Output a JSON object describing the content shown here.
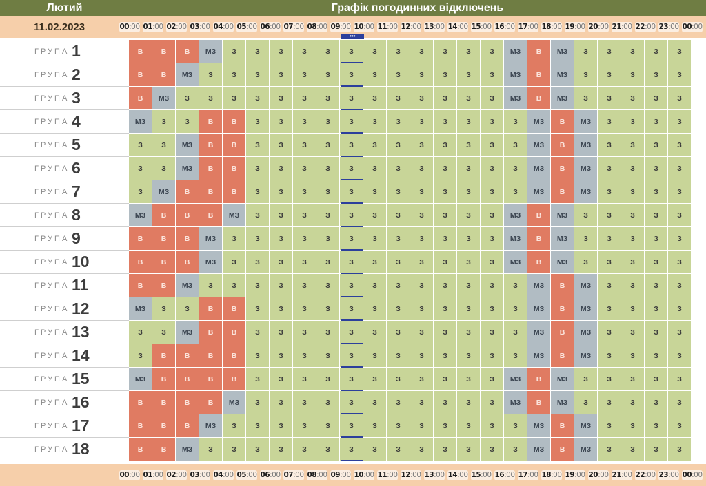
{
  "header": {
    "month": "Лютий",
    "title": "Графік погодинних відключень",
    "date": "11.02.2023"
  },
  "now_badge": "•••",
  "hours": [
    "00",
    "01",
    "02",
    "03",
    "04",
    "05",
    "06",
    "07",
    "08",
    "09",
    "10",
    "11",
    "12",
    "13",
    "14",
    "15",
    "16",
    "17",
    "18",
    "19",
    "20",
    "21",
    "22",
    "23",
    "00"
  ],
  "minutes": ":00",
  "group_word": "ГРУПА",
  "status_labels": {
    "z": "З",
    "v": "В",
    "mz": "МЗ"
  },
  "colors": {
    "z": "#c8d598",
    "v": "#e07b62",
    "mz": "#b1bcc3",
    "header": "#6f7d43",
    "time_bar": "#f6cfaa",
    "now": "#2c3f9c"
  },
  "groups": [
    {
      "number": "1",
      "slots": [
        "v",
        "v",
        "v",
        "mz",
        "z",
        "z",
        "z",
        "z",
        "z",
        "z",
        "z",
        "z",
        "z",
        "z",
        "z",
        "z",
        "mz",
        "v",
        "mz",
        "z",
        "z",
        "z",
        "z",
        "z"
      ]
    },
    {
      "number": "2",
      "slots": [
        "v",
        "v",
        "mz",
        "z",
        "z",
        "z",
        "z",
        "z",
        "z",
        "z",
        "z",
        "z",
        "z",
        "z",
        "z",
        "z",
        "mz",
        "v",
        "mz",
        "z",
        "z",
        "z",
        "z",
        "z"
      ]
    },
    {
      "number": "3",
      "slots": [
        "v",
        "mz",
        "z",
        "z",
        "z",
        "z",
        "z",
        "z",
        "z",
        "z",
        "z",
        "z",
        "z",
        "z",
        "z",
        "z",
        "mz",
        "v",
        "mz",
        "z",
        "z",
        "z",
        "z",
        "z"
      ]
    },
    {
      "number": "4",
      "slots": [
        "mz",
        "z",
        "z",
        "v",
        "v",
        "z",
        "z",
        "z",
        "z",
        "z",
        "z",
        "z",
        "z",
        "z",
        "z",
        "z",
        "z",
        "mz",
        "v",
        "mz",
        "z",
        "z",
        "z",
        "z"
      ]
    },
    {
      "number": "5",
      "slots": [
        "z",
        "z",
        "mz",
        "v",
        "v",
        "z",
        "z",
        "z",
        "z",
        "z",
        "z",
        "z",
        "z",
        "z",
        "z",
        "z",
        "z",
        "mz",
        "v",
        "mz",
        "z",
        "z",
        "z",
        "z"
      ]
    },
    {
      "number": "6",
      "slots": [
        "z",
        "z",
        "mz",
        "v",
        "v",
        "z",
        "z",
        "z",
        "z",
        "z",
        "z",
        "z",
        "z",
        "z",
        "z",
        "z",
        "z",
        "mz",
        "v",
        "mz",
        "z",
        "z",
        "z",
        "z"
      ]
    },
    {
      "number": "7",
      "slots": [
        "z",
        "mz",
        "v",
        "v",
        "v",
        "z",
        "z",
        "z",
        "z",
        "z",
        "z",
        "z",
        "z",
        "z",
        "z",
        "z",
        "z",
        "mz",
        "v",
        "mz",
        "z",
        "z",
        "z",
        "z"
      ]
    },
    {
      "number": "8",
      "slots": [
        "mz",
        "v",
        "v",
        "v",
        "mz",
        "z",
        "z",
        "z",
        "z",
        "z",
        "z",
        "z",
        "z",
        "z",
        "z",
        "z",
        "mz",
        "v",
        "mz",
        "z",
        "z",
        "z",
        "z",
        "z"
      ]
    },
    {
      "number": "9",
      "slots": [
        "v",
        "v",
        "v",
        "mz",
        "z",
        "z",
        "z",
        "z",
        "z",
        "z",
        "z",
        "z",
        "z",
        "z",
        "z",
        "z",
        "mz",
        "v",
        "mz",
        "z",
        "z",
        "z",
        "z",
        "z"
      ]
    },
    {
      "number": "10",
      "slots": [
        "v",
        "v",
        "v",
        "mz",
        "z",
        "z",
        "z",
        "z",
        "z",
        "z",
        "z",
        "z",
        "z",
        "z",
        "z",
        "z",
        "mz",
        "v",
        "mz",
        "z",
        "z",
        "z",
        "z",
        "z"
      ]
    },
    {
      "number": "11",
      "slots": [
        "v",
        "v",
        "mz",
        "z",
        "z",
        "z",
        "z",
        "z",
        "z",
        "z",
        "z",
        "z",
        "z",
        "z",
        "z",
        "z",
        "z",
        "mz",
        "v",
        "mz",
        "z",
        "z",
        "z",
        "z"
      ]
    },
    {
      "number": "12",
      "slots": [
        "mz",
        "z",
        "z",
        "v",
        "v",
        "z",
        "z",
        "z",
        "z",
        "z",
        "z",
        "z",
        "z",
        "z",
        "z",
        "z",
        "z",
        "mz",
        "v",
        "mz",
        "z",
        "z",
        "z",
        "z"
      ]
    },
    {
      "number": "13",
      "slots": [
        "z",
        "z",
        "mz",
        "v",
        "v",
        "z",
        "z",
        "z",
        "z",
        "z",
        "z",
        "z",
        "z",
        "z",
        "z",
        "z",
        "z",
        "mz",
        "v",
        "mz",
        "z",
        "z",
        "z",
        "z"
      ]
    },
    {
      "number": "14",
      "slots": [
        "z",
        "v",
        "v",
        "v",
        "v",
        "z",
        "z",
        "z",
        "z",
        "z",
        "z",
        "z",
        "z",
        "z",
        "z",
        "z",
        "z",
        "mz",
        "v",
        "mz",
        "z",
        "z",
        "z",
        "z"
      ]
    },
    {
      "number": "15",
      "slots": [
        "mz",
        "v",
        "v",
        "v",
        "v",
        "z",
        "z",
        "z",
        "z",
        "z",
        "z",
        "z",
        "z",
        "z",
        "z",
        "z",
        "mz",
        "v",
        "mz",
        "z",
        "z",
        "z",
        "z",
        "z"
      ]
    },
    {
      "number": "16",
      "slots": [
        "v",
        "v",
        "v",
        "v",
        "mz",
        "z",
        "z",
        "z",
        "z",
        "z",
        "z",
        "z",
        "z",
        "z",
        "z",
        "z",
        "mz",
        "v",
        "mz",
        "z",
        "z",
        "z",
        "z",
        "z"
      ]
    },
    {
      "number": "17",
      "slots": [
        "v",
        "v",
        "v",
        "mz",
        "z",
        "z",
        "z",
        "z",
        "z",
        "z",
        "z",
        "z",
        "z",
        "z",
        "z",
        "z",
        "z",
        "mz",
        "v",
        "mz",
        "z",
        "z",
        "z",
        "z"
      ]
    },
    {
      "number": "18",
      "slots": [
        "v",
        "v",
        "mz",
        "z",
        "z",
        "z",
        "z",
        "z",
        "z",
        "z",
        "z",
        "z",
        "z",
        "z",
        "z",
        "z",
        "z",
        "mz",
        "v",
        "mz",
        "z",
        "z",
        "z",
        "z"
      ]
    }
  ]
}
